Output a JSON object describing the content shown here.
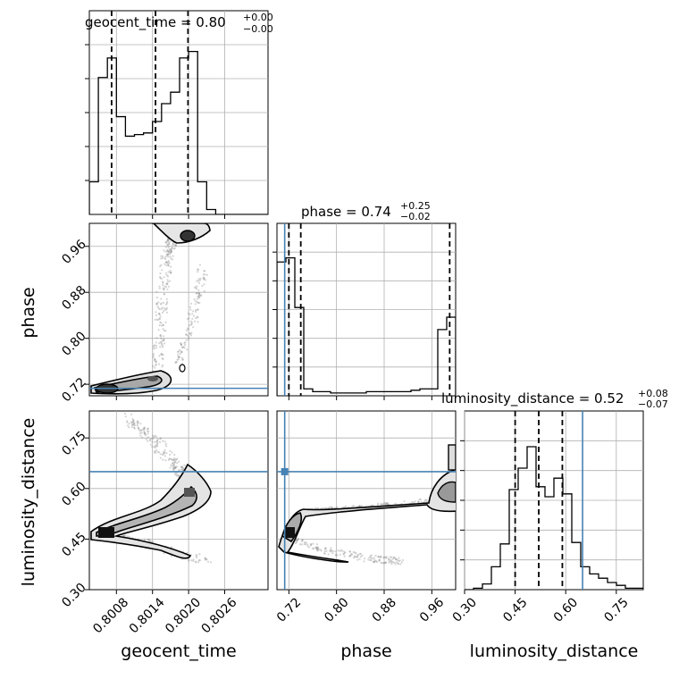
{
  "chart_data": {
    "type": "corner",
    "truth_color": "#4682b4",
    "parameters": [
      {
        "key": "geocent_time",
        "label": "geocent_time",
        "range": [
          0.80035,
          0.80332
        ]
      },
      {
        "key": "phase",
        "label": "phase",
        "range": [
          0.7,
          1.0
        ]
      },
      {
        "key": "luminosity_distance",
        "label": "luminosity_distance",
        "range": [
          0.3,
          0.83
        ]
      }
    ],
    "titles": [
      {
        "param": "geocent_time",
        "text": "geocent_time = 0.80",
        "plus": "+0.00",
        "minus": "−0.00"
      },
      {
        "param": "phase",
        "text": "phase = 0.74",
        "plus": "+0.25",
        "minus": "−0.02"
      },
      {
        "param": "luminosity_distance",
        "text": "luminosity_distance = 0.52",
        "plus": "+0.08",
        "minus": "−0.07"
      }
    ],
    "quantiles": {
      "geocent_time": [
        0.80072,
        0.80145,
        0.80199
      ],
      "phase": [
        0.72,
        0.74,
        0.99
      ],
      "luminosity_distance": [
        0.45,
        0.52,
        0.59
      ]
    },
    "truths": {
      "geocent_time": null,
      "phase": 0.713,
      "luminosity_distance": 0.65
    },
    "histograms": {
      "geocent_time": {
        "edges": [
          0.80035,
          0.8005,
          0.80065,
          0.8008,
          0.80095,
          0.8011,
          0.80125,
          0.8014,
          0.80155,
          0.8017,
          0.80185,
          0.802,
          0.80215,
          0.8023,
          0.80245,
          0.8026,
          0.80275,
          0.8029,
          0.80305,
          0.8032,
          0.80335
        ],
        "counts": [
          0.2,
          0.84,
          0.96,
          0.6,
          0.48,
          0.49,
          0.5,
          0.57,
          0.68,
          0.75,
          0.96,
          1.0,
          0.2,
          0.03,
          0,
          0,
          0,
          0,
          0,
          0
        ]
      },
      "phase": {
        "edges": [
          0.7,
          0.715,
          0.73,
          0.745,
          0.76,
          0.775,
          0.79,
          0.805,
          0.82,
          0.835,
          0.85,
          0.865,
          0.88,
          0.895,
          0.91,
          0.925,
          0.94,
          0.955,
          0.97,
          0.985,
          1.0
        ],
        "counts": [
          0.97,
          1.0,
          0.64,
          0.05,
          0.03,
          0.03,
          0.02,
          0.02,
          0.02,
          0.02,
          0.03,
          0.03,
          0.03,
          0.03,
          0.03,
          0.04,
          0.05,
          0.05,
          0.48,
          0.57
        ]
      },
      "luminosity_distance": {
        "edges": [
          0.3,
          0.3265,
          0.353,
          0.3795,
          0.406,
          0.4325,
          0.459,
          0.4855,
          0.512,
          0.5385,
          0.565,
          0.5915,
          0.618,
          0.6445,
          0.671,
          0.6975,
          0.724,
          0.7505,
          0.777,
          0.8035,
          0.83
        ],
        "counts": [
          0,
          0.01,
          0.04,
          0.16,
          0.32,
          0.7,
          0.85,
          1.0,
          0.72,
          0.65,
          0.78,
          0.67,
          0.33,
          0.16,
          0.11,
          0.08,
          0.05,
          0.03,
          0.01,
          0.01
        ]
      }
    },
    "panels": {
      "geocent_time": {
        "yticks": [
          "",
          "",
          "",
          "",
          ""
        ],
        "xticks": [
          "0.8008",
          "0.8014",
          "0.8020",
          "0.8026"
        ],
        "xtick_values": [
          0.8008,
          0.8014,
          0.802,
          0.8026
        ],
        "xlabel": "geocent_time"
      },
      "phase": {
        "ticks": [
          "0.72",
          "0.80",
          "0.88",
          "0.96"
        ],
        "tick_values": [
          0.72,
          0.8,
          0.88,
          0.96
        ],
        "ylabel": "phase",
        "xlabel": "phase"
      },
      "luminosity_distance": {
        "ticks": [
          "0.30",
          "0.45",
          "0.60",
          "0.75"
        ],
        "tick_values": [
          0.3,
          0.45,
          0.6,
          0.75
        ],
        "ylabel": "luminosity_distance",
        "xlabel": "luminosity_distance"
      }
    }
  }
}
